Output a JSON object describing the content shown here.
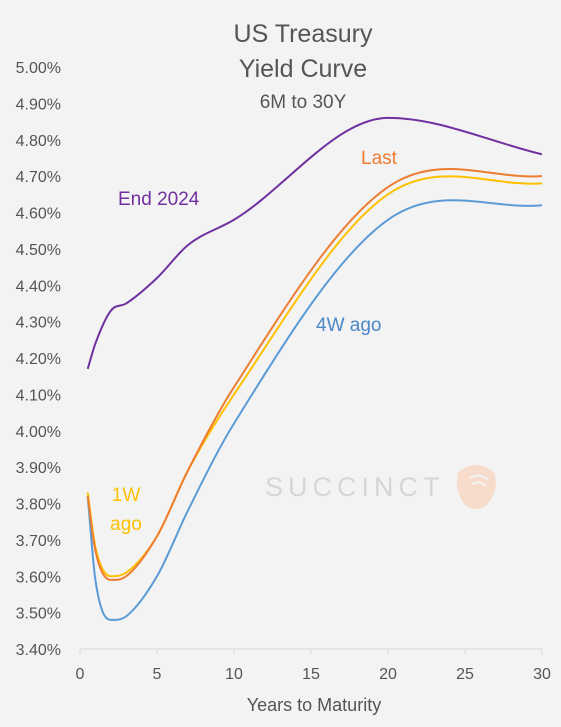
{
  "chart_data": {
    "type": "line",
    "title_lines": [
      "US Treasury",
      "Yield Curve"
    ],
    "subtitle": "6M to 30Y",
    "xlabel": "Years to Maturity",
    "ylabel": "",
    "xlim": [
      0,
      30
    ],
    "ylim": [
      3.4,
      5.0
    ],
    "x_ticks": [
      "0",
      "5",
      "10",
      "15",
      "20",
      "25",
      "30"
    ],
    "y_ticks": [
      "3.40%",
      "3.50%",
      "3.60%",
      "3.70%",
      "3.80%",
      "3.90%",
      "4.00%",
      "4.10%",
      "4.20%",
      "4.30%",
      "4.40%",
      "4.50%",
      "4.60%",
      "4.70%",
      "4.80%",
      "4.90%",
      "5.00%"
    ],
    "grid": false,
    "watermark": "SUCCINCT",
    "series": [
      {
        "name": "End 2024",
        "color": "#7030a0",
        "x": [
          0.5,
          1,
          2,
          3,
          5,
          7,
          10,
          20,
          30
        ],
        "values": [
          4.17,
          4.24,
          4.33,
          4.35,
          4.42,
          4.51,
          4.58,
          4.86,
          4.76
        ]
      },
      {
        "name": "Last",
        "color": "#ed7d31",
        "x": [
          0.5,
          1,
          2,
          3,
          5,
          7,
          10,
          20,
          30
        ],
        "values": [
          3.82,
          3.67,
          3.59,
          3.6,
          3.71,
          3.89,
          4.12,
          4.67,
          4.7
        ]
      },
      {
        "name": "1W ago",
        "color": "#ffc000",
        "x": [
          0.5,
          1,
          2,
          3,
          5,
          7,
          10,
          20,
          30
        ],
        "values": [
          3.83,
          3.68,
          3.6,
          3.61,
          3.71,
          3.89,
          4.1,
          4.65,
          4.68
        ]
      },
      {
        "name": "4W ago",
        "color": "#5b9bd5",
        "x": [
          0.5,
          1,
          2,
          3,
          5,
          7,
          10,
          20,
          30
        ],
        "values": [
          3.82,
          3.59,
          3.48,
          3.49,
          3.6,
          3.78,
          4.02,
          4.58,
          4.62
        ]
      }
    ],
    "annotations": [
      {
        "text": "End 2024",
        "color": "#7030a0"
      },
      {
        "text": "Last",
        "color": "#ed7d31"
      },
      {
        "text": "1W",
        "color": "#ffc000"
      },
      {
        "text": "ago",
        "color": "#ffc000"
      },
      {
        "text": "4W ago",
        "color": "#4a86c8"
      }
    ]
  }
}
